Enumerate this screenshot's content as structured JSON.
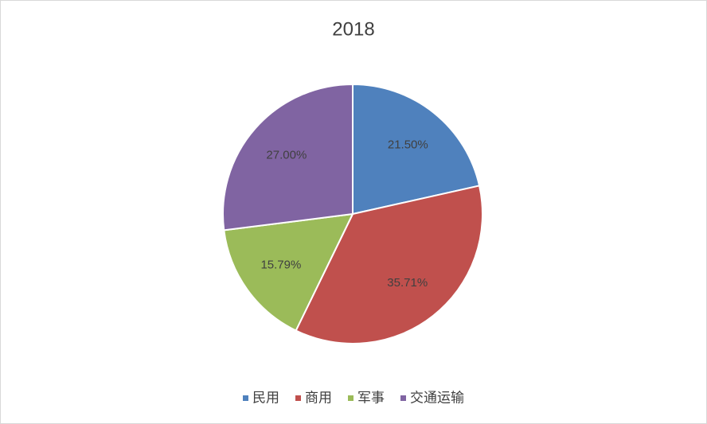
{
  "chart_data": {
    "type": "pie",
    "title": "2018",
    "categories": [
      "民用",
      "商用",
      "军事",
      "交通运输"
    ],
    "values": [
      21.5,
      35.71,
      15.79,
      27.0
    ],
    "value_labels": [
      "21.50%",
      "35.71%",
      "15.79%",
      "27.00%"
    ],
    "colors": [
      "#4f81bd",
      "#c0504d",
      "#9bbb59",
      "#8064a2"
    ],
    "legend": "bottom"
  }
}
